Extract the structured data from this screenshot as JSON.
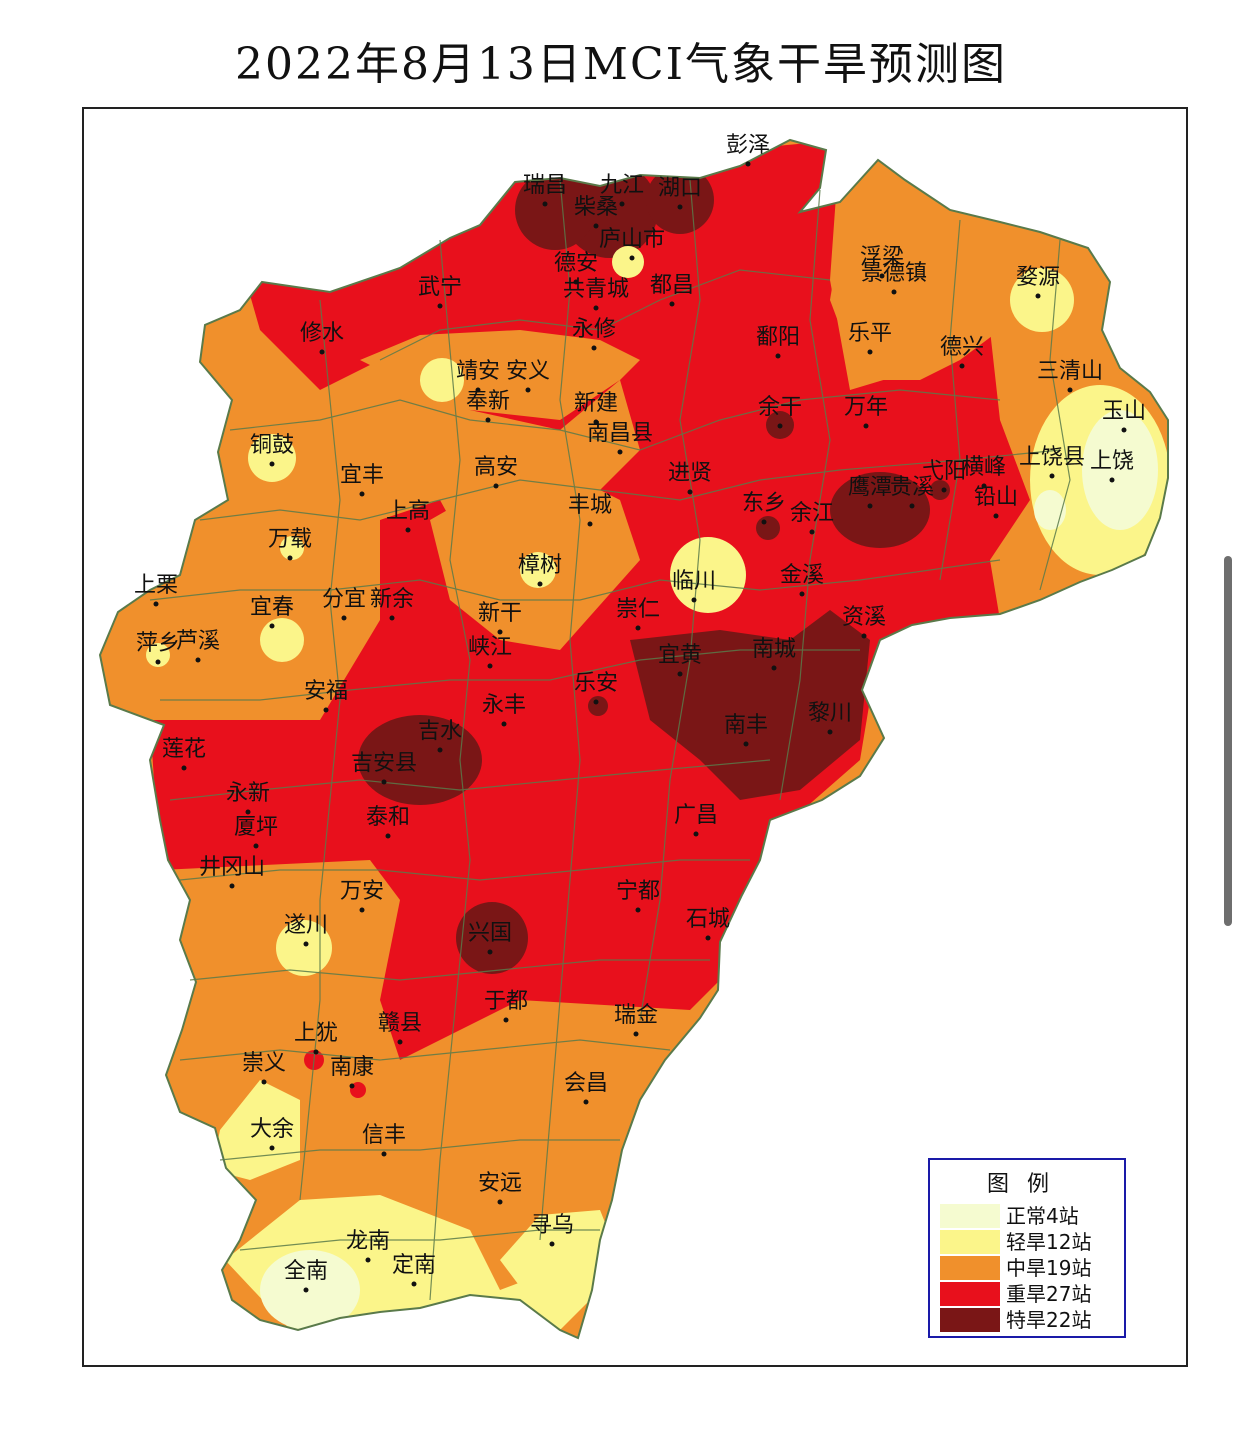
{
  "title": "2022年8月13日MCI气象干旱预测图",
  "legend": {
    "title": "图例",
    "items": [
      {
        "label": "正常4站",
        "color": "#f5fbd0"
      },
      {
        "label": "轻旱12站",
        "color": "#fbf58a"
      },
      {
        "label": "中旱19站",
        "color": "#f0902c"
      },
      {
        "label": "重旱27站",
        "color": "#e8101c"
      },
      {
        "label": "特旱22站",
        "color": "#7a1616"
      }
    ]
  },
  "cities": [
    {
      "name": "彭泽"
    },
    {
      "name": "瑞昌"
    },
    {
      "name": "九江"
    },
    {
      "name": "湖口"
    },
    {
      "name": "柴桑"
    },
    {
      "name": "庐山市"
    },
    {
      "name": "德安"
    },
    {
      "name": "共青城"
    },
    {
      "name": "都昌"
    },
    {
      "name": "武宁"
    },
    {
      "name": "修水"
    },
    {
      "name": "永修"
    },
    {
      "name": "浮梁"
    },
    {
      "name": "景德镇"
    },
    {
      "name": "婺源"
    },
    {
      "name": "鄱阳"
    },
    {
      "name": "乐平"
    },
    {
      "name": "德兴"
    },
    {
      "name": "三清山"
    },
    {
      "name": "靖安"
    },
    {
      "name": "安义"
    },
    {
      "name": "奉新"
    },
    {
      "name": "新建"
    },
    {
      "name": "南昌县"
    },
    {
      "name": "余干"
    },
    {
      "name": "万年"
    },
    {
      "name": "玉山"
    },
    {
      "name": "铜鼓"
    },
    {
      "name": "宜丰"
    },
    {
      "name": "高安"
    },
    {
      "name": "进贤"
    },
    {
      "name": "上饶县"
    },
    {
      "name": "上饶"
    },
    {
      "name": "横峰"
    },
    {
      "name": "弋阳"
    },
    {
      "name": "鹰潭"
    },
    {
      "name": "贵溪"
    },
    {
      "name": "铅山"
    },
    {
      "name": "上高"
    },
    {
      "name": "丰城"
    },
    {
      "name": "东乡"
    },
    {
      "name": "余江"
    },
    {
      "name": "万载"
    },
    {
      "name": "樟树"
    },
    {
      "name": "临川"
    },
    {
      "name": "金溪"
    },
    {
      "name": "上栗"
    },
    {
      "name": "宜春"
    },
    {
      "name": "分宜"
    },
    {
      "name": "新余"
    },
    {
      "name": "新干"
    },
    {
      "name": "崇仁"
    },
    {
      "name": "资溪"
    },
    {
      "name": "萍乡"
    },
    {
      "name": "芦溪"
    },
    {
      "name": "峡江"
    },
    {
      "name": "宜黄"
    },
    {
      "name": "南城"
    },
    {
      "name": "安福"
    },
    {
      "name": "永丰"
    },
    {
      "name": "乐安"
    },
    {
      "name": "吉水"
    },
    {
      "name": "南丰"
    },
    {
      "name": "黎川"
    },
    {
      "name": "莲花"
    },
    {
      "name": "吉安县"
    },
    {
      "name": "永新"
    },
    {
      "name": "泰和"
    },
    {
      "name": "广昌"
    },
    {
      "name": "厦坪"
    },
    {
      "name": "井冈山"
    },
    {
      "name": "万安"
    },
    {
      "name": "宁都"
    },
    {
      "name": "遂川"
    },
    {
      "name": "兴国"
    },
    {
      "name": "石城"
    },
    {
      "name": "于都"
    },
    {
      "name": "瑞金"
    },
    {
      "name": "上犹"
    },
    {
      "name": "赣县"
    },
    {
      "name": "崇义"
    },
    {
      "name": "南康"
    },
    {
      "name": "会昌"
    },
    {
      "name": "大余"
    },
    {
      "name": "信丰"
    },
    {
      "name": "安远"
    },
    {
      "name": "寻乌"
    },
    {
      "name": "龙南"
    },
    {
      "name": "全南"
    },
    {
      "name": "定南"
    }
  ]
}
